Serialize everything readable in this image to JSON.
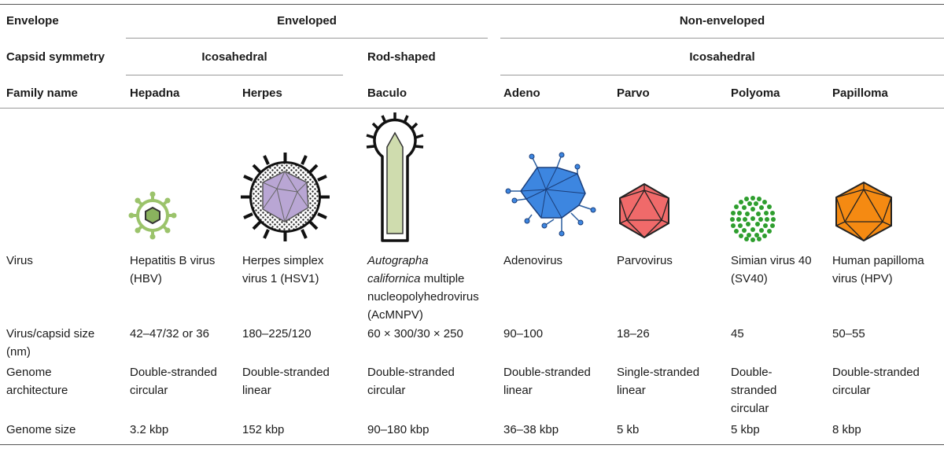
{
  "header": {
    "row1_label": "Envelope",
    "enveloped": "Enveloped",
    "non_enveloped": "Non-enveloped",
    "row2_label": "Capsid symmetry",
    "icosahedral_1": "Icosahedral",
    "rod_shaped": "Rod-shaped",
    "icosahedral_2": "Icosahedral",
    "row3_label": "Family name"
  },
  "families": [
    "Hepadna",
    "Herpes",
    "Baculo",
    "Adeno",
    "Parvo",
    "Polyoma",
    "Papilloma"
  ],
  "row_labels": {
    "virus": "Virus",
    "size_1": "Virus/capsid size",
    "size_2": "(nm)",
    "arch_1": "Genome",
    "arch_2": "architecture",
    "genome_size": "Genome size"
  },
  "virus_names": {
    "hepadna": [
      "Hepatitis B virus",
      "(HBV)"
    ],
    "herpes": [
      "Herpes simplex",
      "virus 1 (HSV1)"
    ],
    "baculo_italic_1": "Autographa",
    "baculo_italic_2": "californica",
    "baculo_rest_2": " multiple",
    "baculo_3": "nucleopolyhedrovirus",
    "baculo_4": "(AcMNPV)",
    "adeno": "Adenovirus",
    "parvo": "Parvovirus",
    "polyoma": [
      "Simian virus 40",
      "(SV40)"
    ],
    "papilloma": [
      "Human papilloma",
      "virus (HPV)"
    ]
  },
  "sizes": [
    "42–47/32 or 36",
    "180–225/120",
    "60 × 300/30 × 250",
    "90–100",
    "18–26",
    "45",
    "50–55"
  ],
  "architecture": {
    "hepadna": [
      "Double-stranded",
      "circular"
    ],
    "herpes": [
      "Double-stranded",
      "linear"
    ],
    "baculo": [
      "Double-stranded",
      "circular"
    ],
    "adeno": [
      "Double-stranded",
      "linear"
    ],
    "parvo": [
      "Single-stranded",
      "linear"
    ],
    "polyoma": [
      "Double-",
      "stranded",
      "circular"
    ],
    "papilloma": [
      "Double-stranded",
      "circular"
    ]
  },
  "genome_sizes": [
    "3.2 kbp",
    "152 kbp",
    "90–180 kbp",
    "36–38 kbp",
    "5 kb",
    "5 kbp",
    "8 kbp"
  ],
  "colors": {
    "hepadna": "#9bc36b",
    "herpes_capsid": "#b9a6d4",
    "baculo": "#cfdcae",
    "adeno": "#3d86e0",
    "parvo": "#f06a6a",
    "polyoma": "#2e9e2e",
    "papilloma": "#f58a12"
  },
  "icons": [
    "hepadna-virus-icon",
    "herpes-virus-icon",
    "baculo-virus-icon",
    "adeno-virus-icon",
    "parvo-virus-icon",
    "polyoma-virus-icon",
    "papilloma-virus-icon"
  ]
}
